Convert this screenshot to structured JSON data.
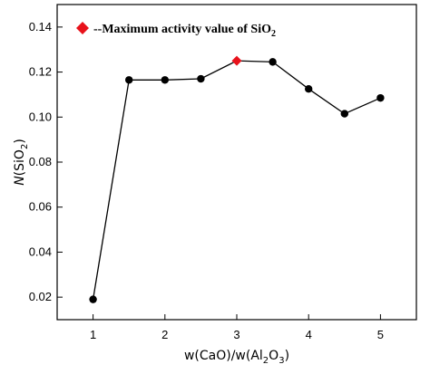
{
  "chart_data": {
    "type": "line",
    "xlabel": "w(CaO)/w(Al2O3)",
    "ylabel": "N(SiO2)",
    "xlim": [
      0.5,
      5.5
    ],
    "ylim": [
      0.01,
      0.15
    ],
    "x_ticks": [
      "1",
      "2",
      "3",
      "4",
      "5"
    ],
    "y_ticks": [
      "0.02",
      "0.04",
      "0.06",
      "0.08",
      "0.10",
      "0.12",
      "0.14"
    ],
    "series": [
      {
        "x": [
          1,
          1.5,
          2,
          2.5,
          3,
          3.5,
          4,
          4.5,
          5
        ],
        "values": [
          0.019,
          0.1165,
          0.1165,
          0.117,
          0.125,
          0.1245,
          0.1125,
          0.1015,
          0.1085
        ],
        "color": "#000000"
      }
    ],
    "highlight": {
      "x": 3,
      "y": 0.125,
      "color": "#e8121b",
      "shape": "diamond"
    },
    "legend": {
      "label": "--Maximum activity value of SiO2",
      "placement": "top-left"
    },
    "grid": false
  }
}
